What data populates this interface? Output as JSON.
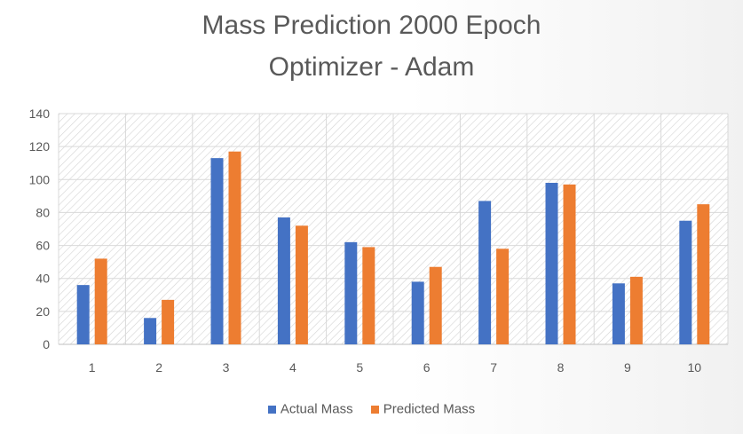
{
  "chart_data": {
    "type": "bar",
    "title": [
      "Mass Prediction 2000 Epoch",
      "Optimizer - Adam"
    ],
    "categories": [
      "1",
      "2",
      "3",
      "4",
      "5",
      "6",
      "7",
      "8",
      "9",
      "10"
    ],
    "series": [
      {
        "name": "Actual Mass",
        "color": "#4472C4",
        "values": [
          36,
          16,
          113,
          77,
          62,
          38,
          87,
          98,
          37,
          75
        ]
      },
      {
        "name": "Predicted Mass",
        "color": "#ED7D31",
        "values": [
          52,
          27,
          117,
          72,
          59,
          47,
          58,
          97,
          41,
          85
        ]
      }
    ],
    "ylim": [
      0,
      140
    ],
    "yticks": [
      0,
      20,
      40,
      60,
      80,
      100,
      120,
      140
    ],
    "grid": true,
    "legend": "bottom"
  }
}
